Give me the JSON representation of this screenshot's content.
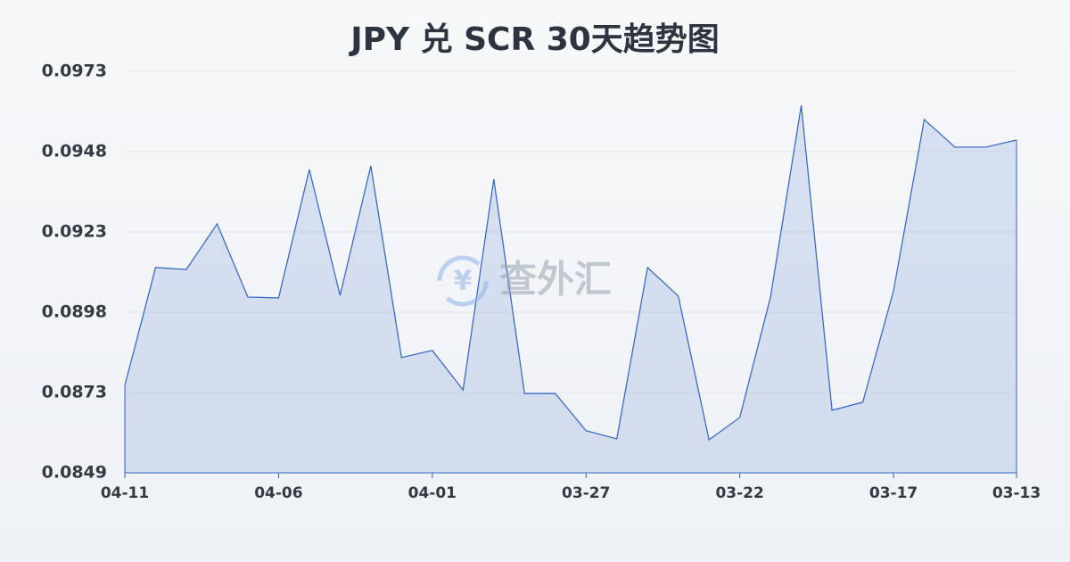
{
  "chart_data": {
    "type": "area",
    "title": "JPY 兑 SCR 30天趋势图",
    "watermark": "查外汇",
    "categories": [
      "04-11",
      null,
      null,
      null,
      null,
      "04-06",
      null,
      null,
      null,
      null,
      "04-01",
      null,
      null,
      null,
      null,
      "03-27",
      null,
      null,
      null,
      null,
      "03-22",
      null,
      null,
      null,
      null,
      "03-17",
      null,
      null,
      null,
      "03-13"
    ],
    "values": [
      0.08756,
      0.0912,
      0.09114,
      0.09255,
      0.09029,
      0.09026,
      0.09423,
      0.09034,
      0.09434,
      0.08842,
      0.08864,
      0.08742,
      0.09393,
      0.08731,
      0.08731,
      0.08616,
      0.08591,
      0.0912,
      0.09032,
      0.08588,
      0.08657,
      0.09029,
      0.09621,
      0.08679,
      0.08704,
      0.09048,
      0.09577,
      0.09492,
      0.09492,
      0.09514
    ],
    "color": "#2f62c0",
    "ylim": [
      0.08486,
      0.09726
    ],
    "yticks": [
      {
        "value": 0.08486,
        "label": "0.0849"
      },
      {
        "value": 0.08734,
        "label": "0.0873"
      },
      {
        "value": 0.08982,
        "label": "0.0898"
      },
      {
        "value": 0.0923,
        "label": "0.0923"
      },
      {
        "value": 0.09478,
        "label": "0.0948"
      },
      {
        "value": 0.09726,
        "label": "0.0973"
      }
    ],
    "grid": true
  }
}
